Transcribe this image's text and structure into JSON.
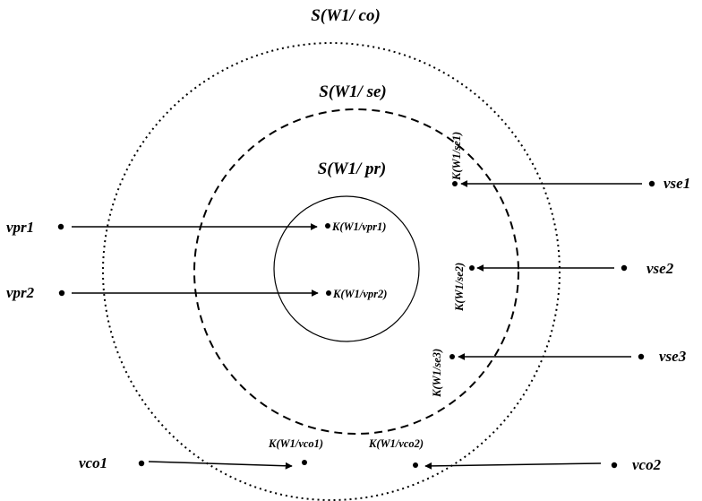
{
  "diagram": {
    "sets": {
      "co": "S(W1/ co)",
      "se": "S(W1/ se)",
      "pr": "S(W1/ pr)"
    },
    "endpoints": {
      "vpr1": "vpr1",
      "vpr2": "vpr2",
      "vse1": "vse1",
      "vse2": "vse2",
      "vse3": "vse3",
      "vco1": "vco1",
      "vco2": "vco2"
    },
    "keys": {
      "vpr1": "K(W1/vpr1)",
      "vpr2": "K(W1/vpr2)",
      "se1": "K(W1/se1)",
      "se2": "K(W1/se2)",
      "se3": "K(W1/se3)",
      "vco1": "K(W1/vco1)",
      "vco2": "K(W1/vco2)"
    }
  }
}
